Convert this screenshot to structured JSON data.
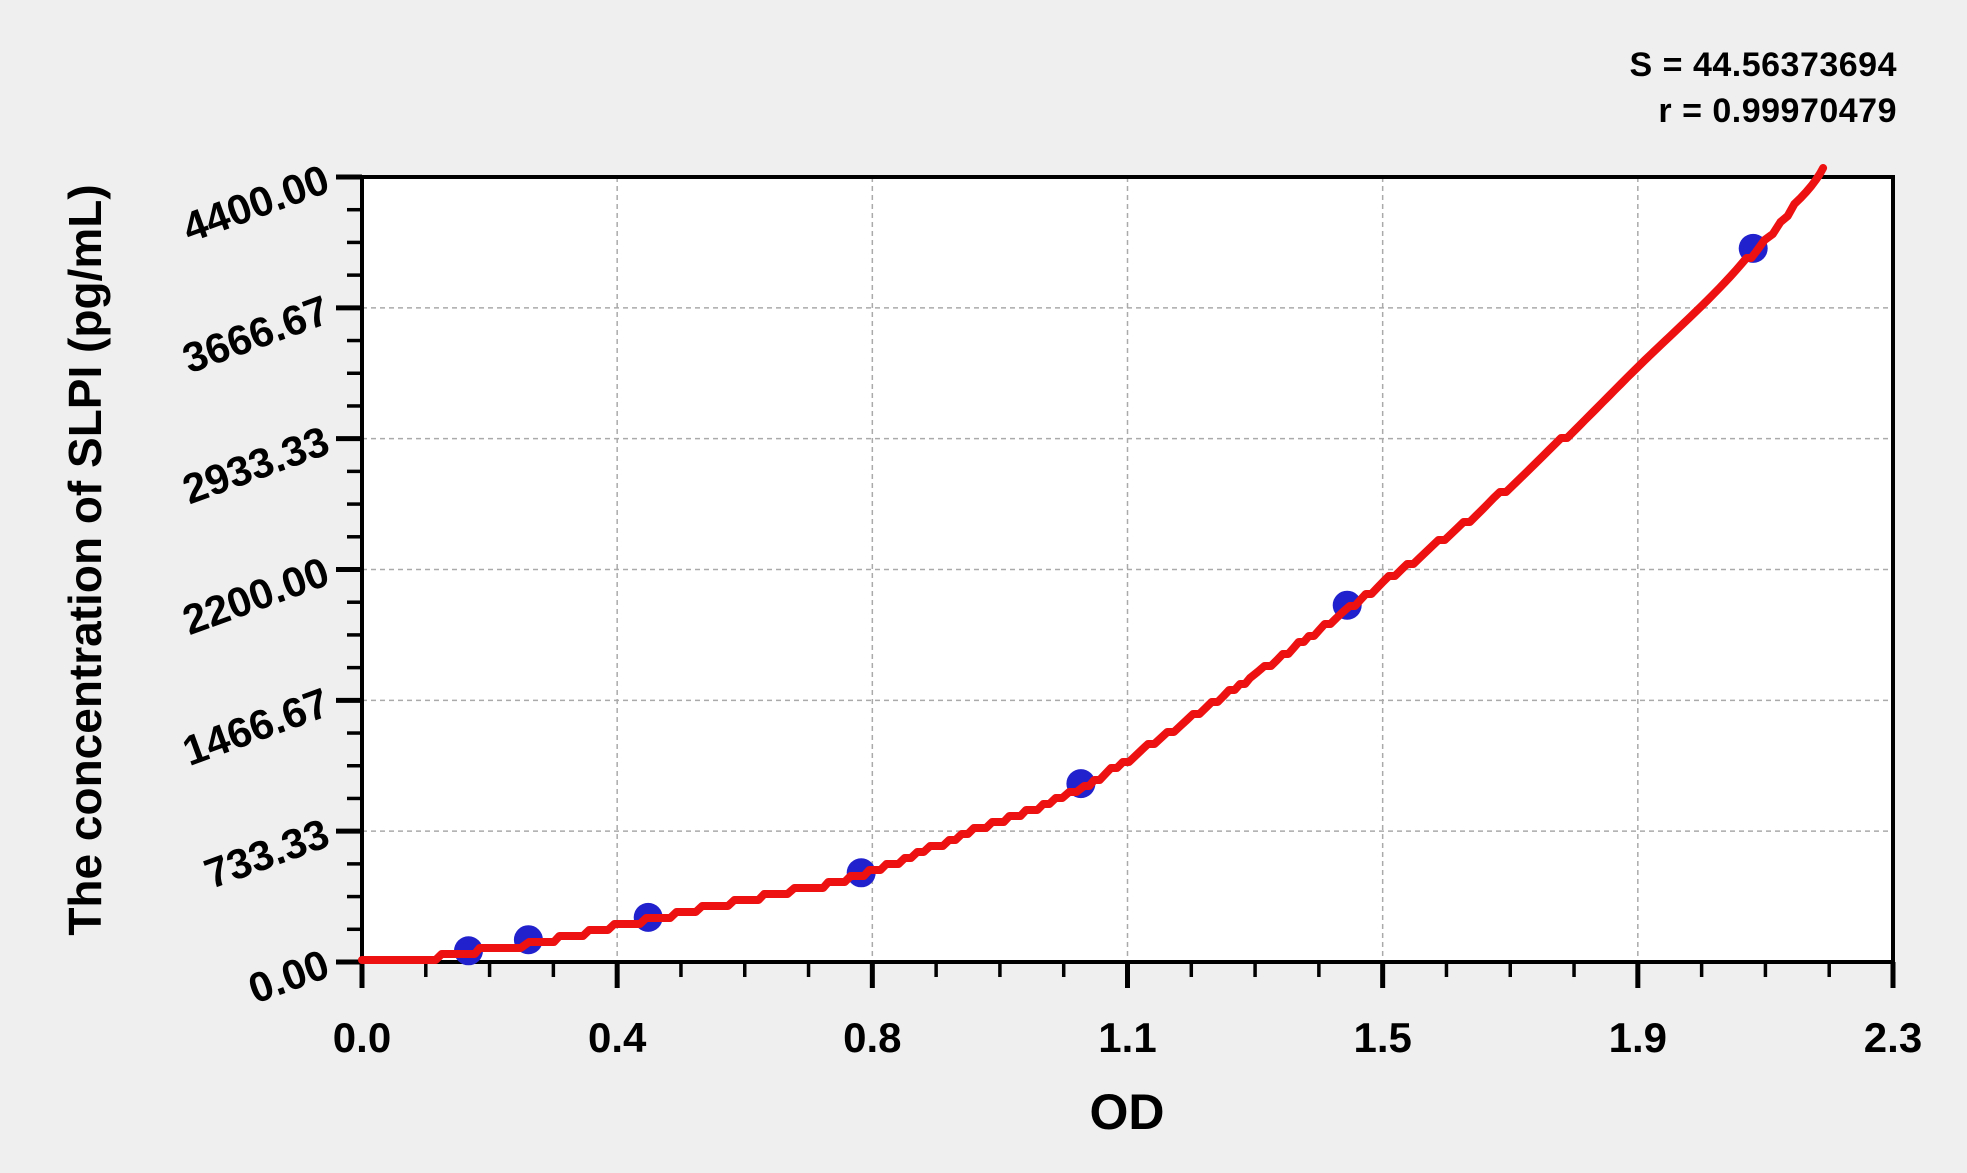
{
  "annotation": {
    "s_line": "S = 44.56373694",
    "r_line": "r = 0.99970479"
  },
  "chart_data": {
    "type": "scatter",
    "title": "",
    "xlabel": "OD",
    "ylabel": "The concentration of SLPI (pg/mL)",
    "xlim": [
      0,
      2.3
    ],
    "ylim": [
      0,
      4400
    ],
    "x_tick_labels": [
      "0.0",
      "0.4",
      "0.8",
      "1.1",
      "1.5",
      "1.9",
      "2.3"
    ],
    "y_tick_labels": [
      "0.00",
      "733.33",
      "1466.67",
      "2200.00",
      "2933.33",
      "3666.67",
      "4400.00"
    ],
    "minor_divisions": 4,
    "grid": "dashed-on-majors",
    "legend_position": "none",
    "fit": {
      "S": 44.56373694,
      "r": 0.99970479
    },
    "series": [
      {
        "name": "standard-points",
        "type": "scatter",
        "color": "#2121cd",
        "points": [
          [
            0.16,
            62.5
          ],
          [
            0.25,
            125
          ],
          [
            0.43,
            250
          ],
          [
            0.75,
            500
          ],
          [
            1.08,
            1000
          ],
          [
            1.48,
            2000
          ],
          [
            2.09,
            4000
          ]
        ]
      },
      {
        "name": "fit-curve",
        "type": "line",
        "color": "#ee1111",
        "points": [
          [
            0.0,
            5
          ],
          [
            0.1,
            22
          ],
          [
            0.162,
            58
          ],
          [
            0.251,
            100
          ],
          [
            0.427,
            235
          ],
          [
            0.628,
            385
          ],
          [
            0.754,
            490
          ],
          [
            0.928,
            750
          ],
          [
            1.085,
            985
          ],
          [
            1.334,
            1590
          ],
          [
            1.484,
            1990
          ],
          [
            1.7,
            2590
          ],
          [
            1.9,
            3270
          ],
          [
            2.094,
            3990
          ],
          [
            2.195,
            4450
          ]
        ]
      }
    ],
    "colors": {
      "background": "#efefef",
      "plot_background": "#ffffff",
      "grid": "#aaaaaa",
      "axis": "#000000",
      "point": "#2121cd",
      "curve": "#ee1111"
    }
  }
}
